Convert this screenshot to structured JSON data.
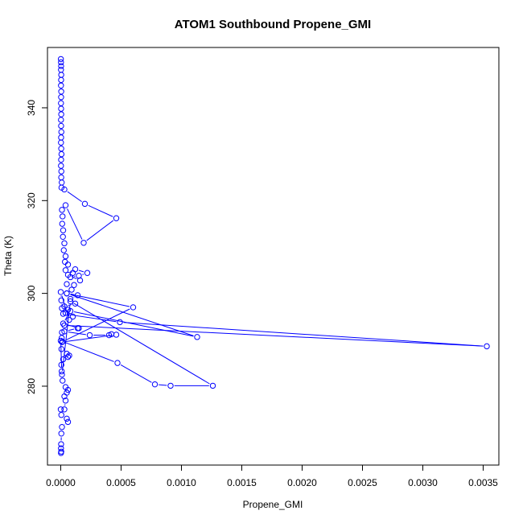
{
  "chart_data": {
    "type": "line",
    "title": "ATOM1 Southbound Propene_GMI",
    "xlabel": "Propene_GMI",
    "ylabel": "Theta (K)",
    "xlim": [
      -0.00011,
      0.00363
    ],
    "ylim": [
      263,
      353
    ],
    "x_ticks": [
      0.0,
      0.0005,
      0.001,
      0.0015,
      0.002,
      0.0025,
      0.003,
      0.0035
    ],
    "x_tick_labels": [
      "0.0000",
      "0.0005",
      "0.0010",
      "0.0015",
      "0.0020",
      "0.0025",
      "0.0030",
      "0.0035"
    ],
    "y_ticks": [
      280,
      300,
      320,
      340
    ],
    "y_tick_labels": [
      "280",
      "300",
      "320",
      "340"
    ],
    "grid": false,
    "series_color": "#0000ff",
    "marker": "open-circle",
    "series": [
      {
        "points": [
          [
            1e-06,
            350.5
          ],
          [
            2e-06,
            349.8
          ],
          [
            3e-06,
            349.0
          ],
          [
            2e-06,
            348.2
          ],
          [
            4e-06,
            347.1
          ],
          [
            3e-06,
            346.0
          ],
          [
            2e-06,
            344.8
          ],
          [
            4e-06,
            343.5
          ],
          [
            3e-06,
            342.3
          ],
          [
            2e-06,
            341.0
          ],
          [
            3e-06,
            339.8
          ],
          [
            4e-06,
            338.6
          ],
          [
            2e-06,
            337.4
          ],
          [
            3e-06,
            336.1
          ],
          [
            5e-06,
            334.8
          ],
          [
            3e-06,
            333.6
          ],
          [
            2e-06,
            332.5
          ],
          [
            4e-06,
            331.2
          ],
          [
            6e-06,
            330.0
          ],
          [
            3e-06,
            328.8
          ],
          [
            2e-06,
            327.5
          ],
          [
            5e-06,
            326.3
          ],
          [
            4e-06,
            325.0
          ],
          [
            8e-06,
            323.9
          ],
          [
            6e-06,
            322.8
          ],
          [
            3e-05,
            322.4
          ],
          [
            0.0002,
            319.3
          ],
          [
            0.00046,
            316.2
          ],
          [
            0.00019,
            310.9
          ],
          [
            4e-05,
            319.0
          ],
          [
            1e-05,
            318.0
          ],
          [
            1.5e-05,
            316.6
          ],
          [
            1.2e-05,
            315.0
          ],
          [
            2e-05,
            313.6
          ],
          [
            1.8e-05,
            312.2
          ],
          [
            3e-05,
            310.8
          ],
          [
            2.5e-05,
            309.3
          ],
          [
            4e-05,
            308.0
          ],
          [
            3.5e-05,
            306.8
          ],
          [
            6e-05,
            306.2
          ],
          [
            4e-05,
            305.0
          ],
          [
            0.0001,
            304.4
          ],
          [
            8e-05,
            303.5
          ],
          [
            0.00015,
            303.8
          ],
          [
            0.00022,
            304.4
          ],
          [
            0.00012,
            305.2
          ],
          [
            6e-05,
            304.0
          ],
          [
            0.00016,
            302.8
          ],
          [
            0.00011,
            301.8
          ],
          [
            5e-05,
            302.0
          ],
          [
            9e-05,
            300.8
          ],
          [
            5e-05,
            300.0
          ],
          [
            0.00014,
            299.6
          ],
          [
            8e-05,
            298.8
          ],
          [
            0.00012,
            297.8
          ],
          [
            3e-05,
            297.2
          ],
          [
            6e-05,
            296.5
          ],
          [
            4e-05,
            295.8
          ],
          [
            0.0001,
            295.0
          ],
          [
            7e-05,
            294.3
          ],
          [
            0.0,
            300.3
          ],
          [
            5e-06,
            298.5
          ],
          [
            1e-05,
            296.8
          ],
          [
            2e-05,
            295.6
          ],
          [
            0.00049,
            293.8
          ],
          [
            0.00353,
            288.6
          ],
          [
            3e-05,
            293.1
          ],
          [
            1e-05,
            291.6
          ],
          [
            8e-06,
            290.4
          ],
          [
            1.5e-05,
            289.6
          ],
          [
            0.0006,
            297.0
          ],
          [
            5e-05,
            300.0
          ],
          [
            0.00113,
            290.6
          ],
          [
            8e-05,
            296.2
          ],
          [
            2e-05,
            293.5
          ],
          [
            0.00015,
            292.5
          ],
          [
            0.00014,
            292.5
          ],
          [
            3e-05,
            291.8
          ],
          [
            0.00024,
            291.0
          ],
          [
            0.0004,
            291.0
          ],
          [
            0.00042,
            291.2
          ],
          [
            0.00046,
            291.1
          ],
          [
            1e-05,
            289.5
          ],
          [
            6e-06,
            288.0
          ],
          [
            5e-05,
            287.0
          ],
          [
            7e-05,
            286.6
          ],
          [
            6e-05,
            286.3
          ],
          [
            2e-05,
            285.8
          ],
          [
            5e-06,
            284.6
          ],
          [
            8e-06,
            283.2
          ],
          [
            0.0,
            289.8
          ],
          [
            0.00047,
            285.0
          ],
          [
            0.00078,
            280.4
          ],
          [
            0.00091,
            280.1
          ],
          [
            0.00126,
            280.1
          ],
          [
            8e-05,
            298.3
          ],
          [
            1e-05,
            282.5
          ],
          [
            1.5e-05,
            281.2
          ],
          [
            4e-05,
            279.8
          ],
          [
            6e-05,
            279.2
          ],
          [
            5e-05,
            278.6
          ],
          [
            3e-05,
            277.8
          ],
          [
            4e-05,
            276.9
          ],
          [
            3e-05,
            275.0
          ],
          [
            0.0,
            275.0
          ],
          [
            5e-06,
            273.8
          ],
          [
            5e-05,
            273.0
          ],
          [
            6e-05,
            272.3
          ],
          [
            1e-05,
            271.2
          ],
          [
            5e-06,
            269.8
          ],
          [
            3e-06,
            267.5
          ],
          [
            2e-06,
            266.6
          ],
          [
            4e-06,
            265.9
          ],
          [
            2e-06,
            265.6
          ]
        ]
      }
    ]
  }
}
